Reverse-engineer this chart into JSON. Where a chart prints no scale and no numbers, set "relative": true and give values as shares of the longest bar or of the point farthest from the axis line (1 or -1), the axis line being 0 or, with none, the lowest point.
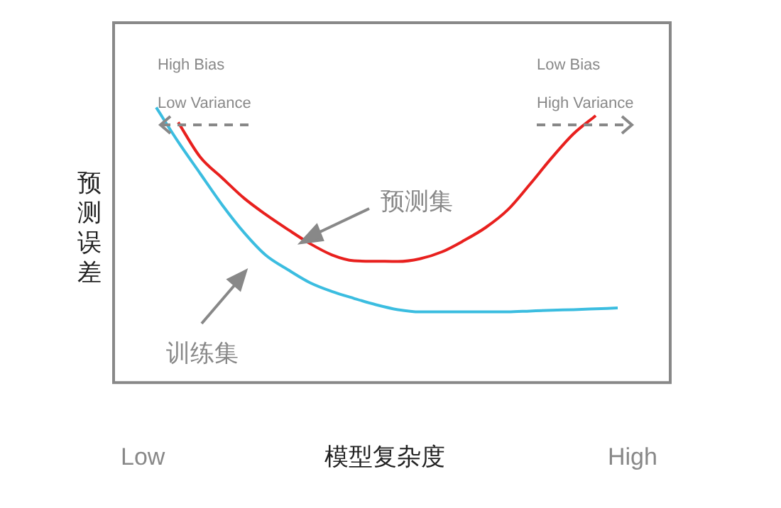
{
  "chart_data": {
    "type": "line",
    "relative": true,
    "xlabel": "模型复杂度",
    "ylabel": "预测误差",
    "categories": [
      null,
      null,
      null,
      null,
      null,
      null,
      null,
      null,
      null,
      null,
      null,
      null,
      null,
      null,
      null,
      null,
      null,
      null,
      null,
      null,
      null,
      null
    ],
    "grid": false,
    "legend": false,
    "marker": "none",
    "line_style": "solid",
    "annotations": [
      "High Bias",
      "Low Variance",
      "Low Bias",
      "High Variance",
      "Low",
      "High"
    ],
    "series": [
      {
        "name": "预测集",
        "color": "#e8201e",
        "values": [
          null,
          0.946,
          0.82,
          0.744,
          0.67,
          0.61,
          0.556,
          0.505,
          0.464,
          0.443,
          0.441,
          0.44,
          0.45,
          0.475,
          0.516,
          0.564,
          0.628,
          0.72,
          0.817,
          0.905,
          0.97,
          null
        ]
      },
      {
        "name": "训练集",
        "color": "#3bbde0",
        "values": [
          1,
          0.875,
          0.76,
          0.646,
          0.545,
          0.462,
          0.41,
          0.363,
          0.331,
          0.306,
          0.283,
          0.265,
          0.257,
          0.257,
          0.257,
          0.257,
          0.257,
          0.26,
          0.263,
          0.265,
          0.268,
          0.271
        ]
      }
    ]
  }
}
